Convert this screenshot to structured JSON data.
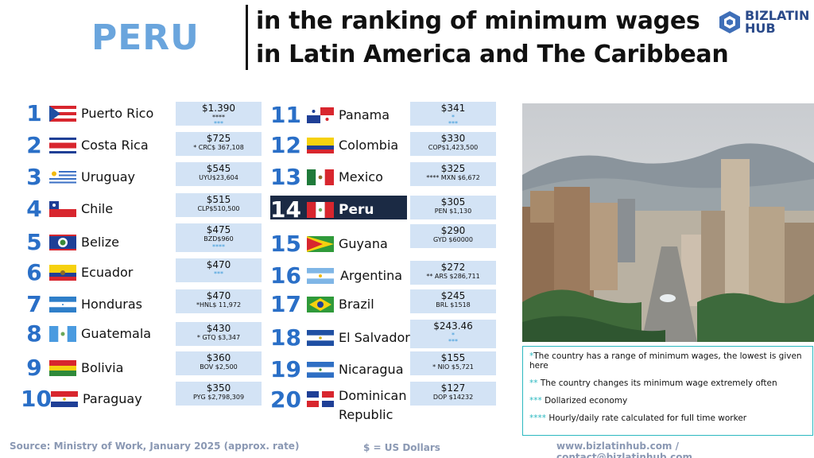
{
  "header": {
    "country": "PERU",
    "headline_line1": "in the ranking of minimum wages",
    "headline_line2": "in Latin America and The Caribbean",
    "logo_line1": "BIZLATIN",
    "logo_line2": "HUB"
  },
  "ranking": [
    {
      "rank": "1",
      "country": "Puerto Rico",
      "wage": "$1.390",
      "local": "****",
      "note": "***"
    },
    {
      "rank": "2",
      "country": "Costa Rica",
      "wage": "$725",
      "local": "* CRC$ 367,108",
      "note": ""
    },
    {
      "rank": "3",
      "country": "Uruguay",
      "wage": "$545",
      "local": "UYU$23,604",
      "note": ""
    },
    {
      "rank": "4",
      "country": "Chile",
      "wage": "$515",
      "local": "CLP$510,500",
      "note": ""
    },
    {
      "rank": "5",
      "country": "Belize",
      "wage": "$475",
      "local": "BZD$960",
      "note": "****"
    },
    {
      "rank": "6",
      "country": "Ecuador",
      "wage": "$470",
      "local": "***",
      "note": ""
    },
    {
      "rank": "7",
      "country": "Honduras",
      "wage": "$470",
      "local": "*HNL$ 11,972",
      "note": ""
    },
    {
      "rank": "8",
      "country": "Guatemala",
      "wage": "$430",
      "local": "* GTQ $3,347",
      "note": ""
    },
    {
      "rank": "9",
      "country": "Bolivia",
      "wage": "$360",
      "local": "BOV $2,500",
      "note": ""
    },
    {
      "rank": "10",
      "country": "Paraguay",
      "wage": "$350",
      "local": "PYG $2,798,309",
      "note": ""
    },
    {
      "rank": "11",
      "country": "Panama",
      "wage": "$341",
      "local": "*",
      "note": "***"
    },
    {
      "rank": "12",
      "country": "Colombia",
      "wage": "$330",
      "local": "COP$1,423,500",
      "note": ""
    },
    {
      "rank": "13",
      "country": "Mexico",
      "wage": "$325",
      "local": "**** MXN $6,672",
      "note": ""
    },
    {
      "rank": "14",
      "country": "Peru",
      "wage": "$305",
      "local": "PEN $1,130",
      "note": ""
    },
    {
      "rank": "15",
      "country": "Guyana",
      "wage": "$290",
      "local": "GYD $60000",
      "note": ""
    },
    {
      "rank": "16",
      "country": "Argentina",
      "wage": "$272",
      "local": "** ARS $286,711",
      "note": ""
    },
    {
      "rank": "17",
      "country": "Brazil",
      "wage": "$245",
      "local": "BRL $1518",
      "note": ""
    },
    {
      "rank": "18",
      "country": "El Salvador",
      "wage": "$243.46",
      "local": "*",
      "note": "***"
    },
    {
      "rank": "19",
      "country": "Nicaragua",
      "wage": "$155",
      "local": "* NIO $5,721",
      "note": ""
    },
    {
      "rank": "20",
      "country": "Dominican",
      "wage": "$127",
      "local": "DOP $14232",
      "note": "",
      "country2": "Republic"
    }
  ],
  "legend": {
    "l1_star": "*",
    "l1": "The country has a range of minimum wages, the lowest is given here",
    "l2_star": "**",
    "l2": " The country changes its minimum wage extremely often",
    "l3_star": "***",
    "l3": " Dollarized economy",
    "l4_star": "****",
    "l4": " Hourly/daily rate calculated for full time worker"
  },
  "footer": {
    "source": "Source: Ministry of Work, January 2025 (approx. rate)",
    "currency": "$ = US Dollars",
    "contact": "www.bizlatinhub.com / contact@bizlatinhub.com"
  },
  "colors": {
    "accent": "#2a6fc7",
    "title_blue": "#6aa5dd",
    "box_fill": "#d3e3f5",
    "highlight": "#1b2a44",
    "teal": "#2bb8c0"
  }
}
